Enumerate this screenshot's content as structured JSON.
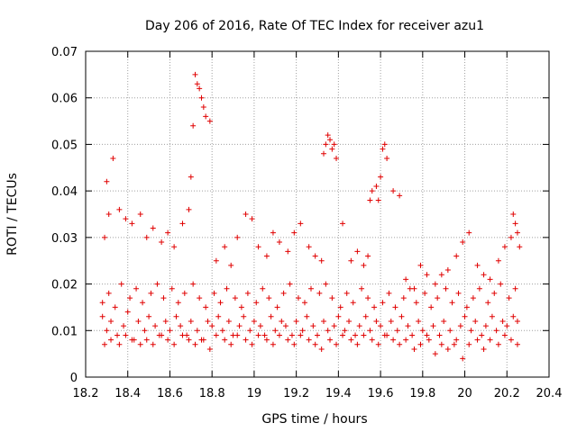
{
  "chart_data": {
    "type": "scatter",
    "title": "Day 206 of 2016, Rate Of TEC Index for receiver azu1",
    "xlabel": "GPS time / hours",
    "ylabel": "ROTI / TECUs",
    "xlim": [
      18.2,
      20.4
    ],
    "ylim": [
      0,
      0.07
    ],
    "xticks": [
      "18.2",
      "18.4",
      "18.6",
      "18.8",
      "19",
      "19.2",
      "19.4",
      "19.6",
      "19.8",
      "20",
      "20.2",
      "20.4"
    ],
    "yticks": [
      "0",
      "0.01",
      "0.02",
      "0.03",
      "0.04",
      "0.05",
      "0.06",
      "0.07"
    ],
    "grid": true,
    "marker": "+",
    "marker_color": "#e00000",
    "series": [
      {
        "name": "azu1",
        "x": [
          18.28,
          18.3,
          18.32,
          18.35,
          18.38,
          18.4,
          18.43,
          18.45,
          18.48,
          18.5,
          18.53,
          18.55,
          18.58,
          18.6,
          18.63,
          18.65,
          18.68,
          18.7,
          18.73,
          18.75,
          18.78,
          18.8,
          18.83,
          18.85,
          18.88,
          18.9,
          18.93,
          18.95,
          18.98,
          19.0,
          19.03,
          19.05,
          19.08,
          19.1,
          19.13,
          19.15,
          19.18,
          19.2,
          19.23,
          19.25,
          19.28,
          19.3,
          19.33,
          19.35,
          19.38,
          19.4,
          19.43,
          19.45,
          19.48,
          19.5,
          19.53,
          19.55,
          19.58,
          19.6,
          19.63,
          19.65,
          19.68,
          19.7,
          19.73,
          19.75,
          19.78,
          19.8,
          19.83,
          19.85,
          19.88,
          19.9,
          19.93,
          19.95,
          19.98,
          20.0,
          20.03,
          20.05,
          20.08,
          20.1,
          20.13,
          20.15,
          20.18,
          20.2,
          20.23,
          20.25,
          18.28,
          18.31,
          18.34,
          18.37,
          18.41,
          18.44,
          18.47,
          18.51,
          18.54,
          18.57,
          18.61,
          18.64,
          18.67,
          18.71,
          18.74,
          18.77,
          18.81,
          18.84,
          18.87,
          18.91,
          18.94,
          18.97,
          19.01,
          19.04,
          19.07,
          19.11,
          19.14,
          19.17,
          19.21,
          19.24,
          19.27,
          19.31,
          19.34,
          19.37,
          19.41,
          19.44,
          19.47,
          19.51,
          19.54,
          19.57,
          19.61,
          19.64,
          19.67,
          19.71,
          19.74,
          19.77,
          19.81,
          19.84,
          19.87,
          19.91,
          19.94,
          19.97,
          20.01,
          20.04,
          20.07,
          20.11,
          20.14,
          20.17,
          20.21,
          20.24,
          18.29,
          18.3,
          18.31,
          18.33,
          18.36,
          18.39,
          18.42,
          18.46,
          18.49,
          18.52,
          18.56,
          18.59,
          18.62,
          18.66,
          18.69,
          18.7,
          18.71,
          18.72,
          18.73,
          18.74,
          18.75,
          18.76,
          18.77,
          18.79,
          18.82,
          18.86,
          18.89,
          18.92,
          18.96,
          18.99,
          19.02,
          19.06,
          19.09,
          19.12,
          19.16,
          19.19,
          19.22,
          19.26,
          19.29,
          19.32,
          19.33,
          19.34,
          19.35,
          19.36,
          19.37,
          19.38,
          19.39,
          19.42,
          19.46,
          19.49,
          19.52,
          19.54,
          19.55,
          19.56,
          19.58,
          19.59,
          19.6,
          19.61,
          19.62,
          19.63,
          19.66,
          19.69,
          19.72,
          19.76,
          19.79,
          19.82,
          19.86,
          19.89,
          19.92,
          19.96,
          19.99,
          20.02,
          20.06,
          20.09,
          20.12,
          20.16,
          20.19,
          20.22,
          20.23,
          20.24,
          20.25,
          20.26,
          18.29,
          18.32,
          18.36,
          18.39,
          18.42,
          18.46,
          18.49,
          18.52,
          18.56,
          18.59,
          18.62,
          18.66,
          18.69,
          18.72,
          18.76,
          18.79,
          18.82,
          18.86,
          18.89,
          18.92,
          18.96,
          18.99,
          19.02,
          19.06,
          19.09,
          19.12,
          19.16,
          19.19,
          19.22,
          19.26,
          19.29,
          19.32,
          19.36,
          19.39,
          19.42,
          19.46,
          19.49,
          19.52,
          19.56,
          19.59,
          19.62,
          19.66,
          19.69,
          19.72,
          19.76,
          19.79,
          19.82,
          19.86,
          19.89,
          19.92,
          19.96,
          19.99,
          20.02,
          20.06,
          20.09,
          20.12,
          20.16,
          20.19,
          20.22,
          20.25
        ],
        "y": [
          0.013,
          0.01,
          0.012,
          0.009,
          0.011,
          0.014,
          0.008,
          0.012,
          0.01,
          0.013,
          0.011,
          0.009,
          0.012,
          0.01,
          0.013,
          0.011,
          0.009,
          0.012,
          0.01,
          0.008,
          0.012,
          0.011,
          0.013,
          0.01,
          0.012,
          0.009,
          0.011,
          0.013,
          0.01,
          0.012,
          0.011,
          0.009,
          0.013,
          0.01,
          0.012,
          0.011,
          0.009,
          0.012,
          0.01,
          0.013,
          0.011,
          0.009,
          0.012,
          0.01,
          0.011,
          0.013,
          0.01,
          0.012,
          0.009,
          0.011,
          0.013,
          0.01,
          0.012,
          0.011,
          0.009,
          0.012,
          0.01,
          0.013,
          0.011,
          0.009,
          0.012,
          0.01,
          0.008,
          0.011,
          0.009,
          0.012,
          0.01,
          0.007,
          0.011,
          0.013,
          0.01,
          0.012,
          0.009,
          0.011,
          0.013,
          0.01,
          0.012,
          0.011,
          0.013,
          0.012,
          0.016,
          0.018,
          0.015,
          0.02,
          0.017,
          0.019,
          0.016,
          0.018,
          0.02,
          0.017,
          0.019,
          0.016,
          0.018,
          0.02,
          0.017,
          0.015,
          0.018,
          0.016,
          0.019,
          0.017,
          0.015,
          0.018,
          0.016,
          0.019,
          0.017,
          0.015,
          0.018,
          0.02,
          0.017,
          0.016,
          0.019,
          0.018,
          0.02,
          0.017,
          0.015,
          0.018,
          0.016,
          0.019,
          0.017,
          0.015,
          0.016,
          0.018,
          0.015,
          0.017,
          0.019,
          0.016,
          0.018,
          0.015,
          0.017,
          0.019,
          0.016,
          0.018,
          0.015,
          0.017,
          0.019,
          0.016,
          0.018,
          0.02,
          0.017,
          0.019,
          0.03,
          0.042,
          0.035,
          0.047,
          0.036,
          0.034,
          0.033,
          0.035,
          0.03,
          0.032,
          0.029,
          0.031,
          0.028,
          0.033,
          0.036,
          0.043,
          0.054,
          0.065,
          0.063,
          0.062,
          0.06,
          0.058,
          0.056,
          0.055,
          0.025,
          0.028,
          0.024,
          0.03,
          0.035,
          0.034,
          0.028,
          0.026,
          0.031,
          0.029,
          0.027,
          0.031,
          0.033,
          0.028,
          0.026,
          0.025,
          0.048,
          0.05,
          0.052,
          0.051,
          0.049,
          0.05,
          0.047,
          0.033,
          0.025,
          0.027,
          0.024,
          0.026,
          0.038,
          0.04,
          0.041,
          0.038,
          0.043,
          0.049,
          0.05,
          0.047,
          0.04,
          0.039,
          0.021,
          0.019,
          0.024,
          0.022,
          0.02,
          0.022,
          0.023,
          0.026,
          0.029,
          0.031,
          0.024,
          0.022,
          0.021,
          0.025,
          0.028,
          0.03,
          0.035,
          0.033,
          0.031,
          0.028,
          0.007,
          0.008,
          0.007,
          0.009,
          0.008,
          0.007,
          0.008,
          0.007,
          0.009,
          0.008,
          0.007,
          0.009,
          0.008,
          0.007,
          0.008,
          0.006,
          0.009,
          0.008,
          0.007,
          0.009,
          0.008,
          0.007,
          0.009,
          0.008,
          0.007,
          0.009,
          0.008,
          0.007,
          0.009,
          0.008,
          0.007,
          0.006,
          0.008,
          0.007,
          0.009,
          0.008,
          0.007,
          0.009,
          0.008,
          0.007,
          0.009,
          0.008,
          0.007,
          0.008,
          0.006,
          0.007,
          0.009,
          0.005,
          0.007,
          0.006,
          0.008,
          0.004,
          0.007,
          0.008,
          0.006,
          0.008,
          0.007,
          0.009,
          0.008,
          0.007
        ]
      }
    ]
  }
}
